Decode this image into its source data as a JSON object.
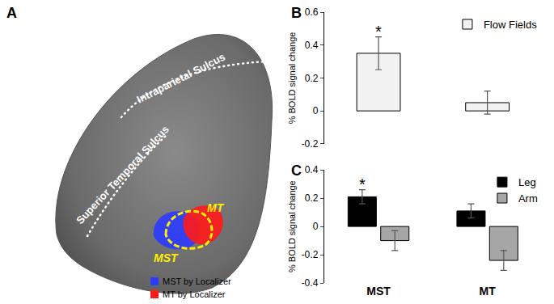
{
  "panel_a": {
    "panel": "A",
    "sulci": [
      "Intraparietal Sulcus",
      "Superior Temporal Sulcus"
    ],
    "regions": [
      {
        "name": "MST",
        "color": "#2b3bff"
      },
      {
        "name": "MT",
        "color": "#ff1a1a"
      }
    ],
    "legend": [
      {
        "name": "MST by Localizer",
        "color": "#2b3bff"
      },
      {
        "name": "MT by Localizer",
        "color": "#ff1a1a"
      }
    ]
  },
  "chart_data": [
    {
      "type": "bar",
      "panel": "B",
      "categories": [
        "MST",
        "MT"
      ],
      "y_label": "% BOLD signal change",
      "series": [
        {
          "name": "Flow Fields",
          "color": "#f2f2f2",
          "values": [
            0.35,
            0.05
          ],
          "errors": [
            0.1,
            0.07
          ]
        }
      ],
      "ylim": [
        -0.2,
        0.6
      ],
      "yticks": [
        -0.2,
        0,
        0.2,
        0.4,
        0.6
      ],
      "legend": "upper right",
      "tick_labels": "y",
      "grid": false,
      "annotations": [
        {
          "text": "*",
          "series": "Flow Fields",
          "category": "MST"
        }
      ]
    },
    {
      "type": "bar",
      "panel": "C",
      "categories": [
        "MST",
        "MT"
      ],
      "y_label": "% BOLD signal change",
      "series": [
        {
          "name": "Leg",
          "color": "#000000",
          "values": [
            0.21,
            0.11
          ],
          "errors": [
            0.05,
            0.05
          ]
        },
        {
          "name": "Arm",
          "color": "#a6a6a6",
          "values": [
            -0.1,
            -0.24
          ],
          "errors": [
            0.07,
            0.07
          ]
        }
      ],
      "ylim": [
        -0.4,
        0.4
      ],
      "yticks": [
        -0.4,
        -0.2,
        0,
        0.2,
        0.4
      ],
      "legend": "upper right",
      "grid": false,
      "annotations": [
        {
          "text": "*",
          "series": "Leg",
          "category": "MST"
        }
      ]
    }
  ]
}
